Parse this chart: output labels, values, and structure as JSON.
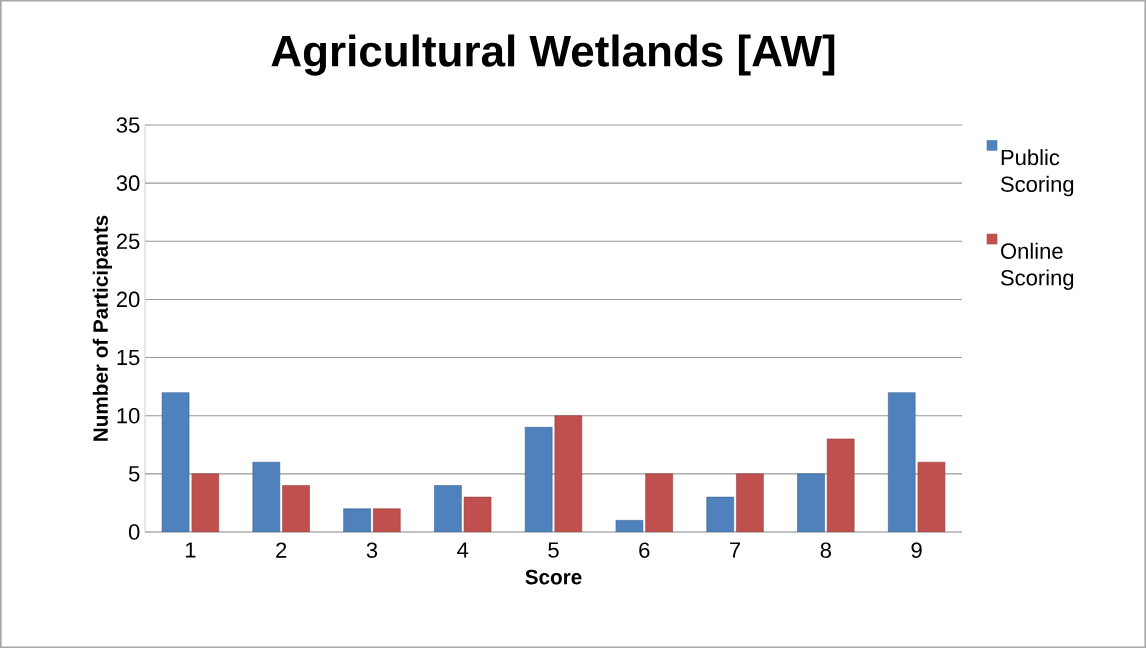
{
  "chart_data": {
    "type": "bar",
    "title": "Agricultural Wetlands [AW]",
    "xlabel": "Score",
    "ylabel": "Number of Participants",
    "categories": [
      "1",
      "2",
      "3",
      "4",
      "5",
      "6",
      "7",
      "8",
      "9"
    ],
    "series": [
      {
        "name": "Public Scoring",
        "color": "#4f81bd",
        "values": [
          12,
          6,
          2,
          4,
          9,
          1,
          3,
          5,
          12
        ]
      },
      {
        "name": "Online Scoring",
        "color": "#c0504d",
        "values": [
          5,
          4,
          2,
          3,
          10,
          5,
          5,
          8,
          6
        ]
      }
    ],
    "ylim": [
      0,
      35
    ],
    "yticks": [
      0,
      5,
      10,
      15,
      20,
      25,
      30,
      35
    ],
    "grid": "y",
    "legend": "right"
  }
}
